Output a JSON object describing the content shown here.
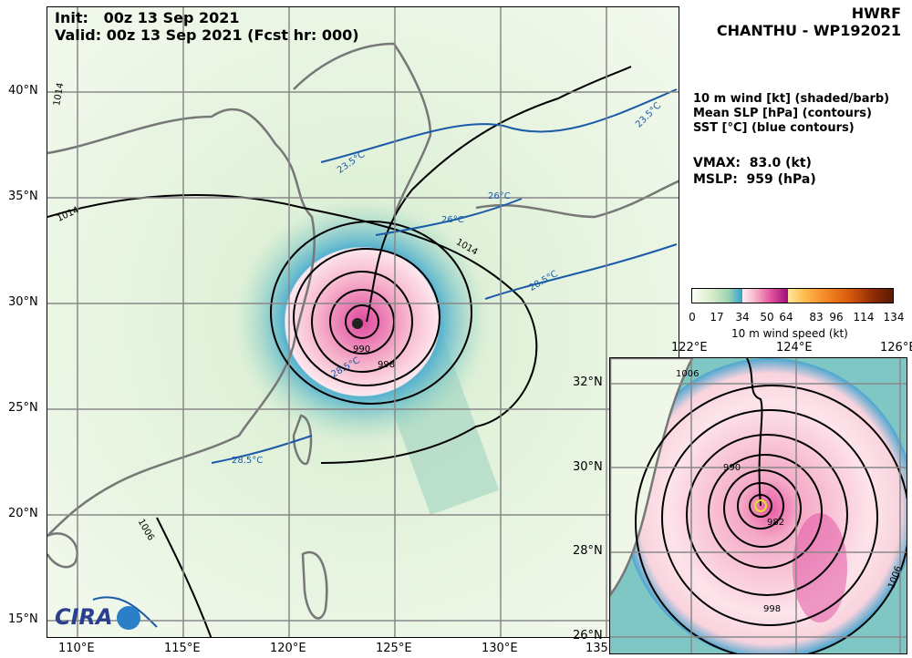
{
  "title": {
    "model": "HWRF",
    "storm": "CHANTHU - WP192021",
    "init": "Init:   00z 13 Sep 2021",
    "valid": "Valid: 00z 13 Sep 2021 (Fcst hr: 000)"
  },
  "legend": {
    "line1": "10 m wind [kt] (shaded/barb)",
    "line2": "Mean SLP [hPa] (contours)",
    "line3": "SST [°C] (blue contours)"
  },
  "stats": {
    "vmax": "VMAX:  83.0 (kt)",
    "mslp": "MSLP:  959 (hPa)"
  },
  "colorbar": {
    "label": "10 m wind speed (kt)",
    "ticks": [
      "0",
      "17",
      "34",
      "50",
      "64",
      "83",
      "96",
      "114",
      "134"
    ]
  },
  "main_map": {
    "lon_ticks": [
      "110°E",
      "115°E",
      "120°E",
      "125°E",
      "130°E",
      "135°E"
    ],
    "lat_ticks": [
      "40°N",
      "35°N",
      "30°N",
      "25°N",
      "20°N",
      "15°N"
    ],
    "contour_labels": [
      "1014",
      "1014",
      "1014",
      "1006",
      "990",
      "998"
    ],
    "sst_labels": [
      "23.5°C",
      "23.5°C",
      "26°C",
      "26°C",
      "28.5°C",
      "28.5°C",
      "28.5°C"
    ]
  },
  "inset_map": {
    "lon_ticks": [
      "122°E",
      "124°E",
      "126°E"
    ],
    "lat_ticks": [
      "32°N",
      "30°N",
      "28°N",
      "26°N"
    ],
    "contour_labels": [
      "1006",
      "990",
      "982",
      "998",
      "1006"
    ]
  },
  "logo": "CIRA"
}
